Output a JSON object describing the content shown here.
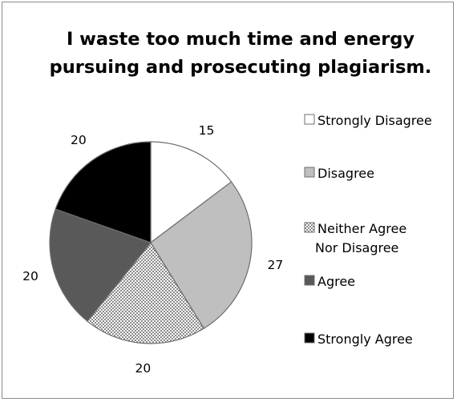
{
  "chart_data": {
    "type": "pie",
    "title": [
      "I waste too much time and energy",
      "pursuing and prosecuting plagiarism."
    ],
    "slices": [
      {
        "label": [
          "Strongly Disagree"
        ],
        "value": 15,
        "display": "15",
        "fill": "#ffffff",
        "pattern": "none"
      },
      {
        "label": [
          "Disagree"
        ],
        "value": 27,
        "display": "27",
        "fill": "#bfbfbf",
        "pattern": "none"
      },
      {
        "label": [
          "Neither Agree",
          "Nor Disagree"
        ],
        "value": 20,
        "display": "20",
        "fill": "#ffffff",
        "pattern": "checker"
      },
      {
        "label": [
          "Agree"
        ],
        "value": 20,
        "display": "20",
        "fill": "#595959",
        "pattern": "none"
      },
      {
        "label": [
          "Strongly Agree"
        ],
        "value": 20,
        "display": "20",
        "fill": "#000000",
        "pattern": "none"
      }
    ],
    "legend_position": "right",
    "start_angle": "12 o'clock, clockwise"
  }
}
